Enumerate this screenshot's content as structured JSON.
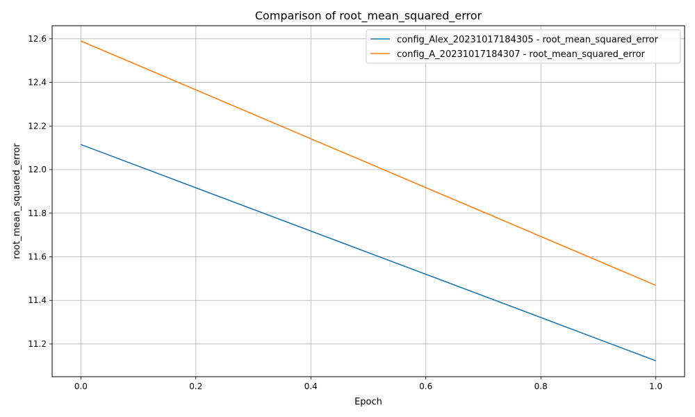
{
  "chart_data": {
    "type": "line",
    "title": "Comparison of root_mean_squared_error",
    "xlabel": "Epoch",
    "ylabel": "root_mean_squared_error",
    "x": [
      0.0,
      1.0
    ],
    "xlim": [
      -0.05,
      1.05
    ],
    "ylim": [
      11.05,
      12.66
    ],
    "xticks": [
      0.0,
      0.2,
      0.4,
      0.6,
      0.8,
      1.0
    ],
    "xtick_labels": [
      "0.0",
      "0.2",
      "0.4",
      "0.6",
      "0.8",
      "1.0"
    ],
    "yticks": [
      11.2,
      11.4,
      11.6,
      11.8,
      12.0,
      12.2,
      12.4,
      12.6
    ],
    "ytick_labels": [
      "11.2",
      "11.4",
      "11.6",
      "11.8",
      "12.0",
      "12.2",
      "12.4",
      "12.6"
    ],
    "grid": true,
    "legend_position": "top-right",
    "series": [
      {
        "name": "config_Alex_20231017184305 - root_mean_squared_error",
        "values": [
          12.115,
          11.123
        ],
        "color": "#1f77b4"
      },
      {
        "name": "config_A_20231017184307 - root_mean_squared_error",
        "values": [
          12.59,
          11.469
        ],
        "color": "#ff7f0e"
      }
    ]
  }
}
